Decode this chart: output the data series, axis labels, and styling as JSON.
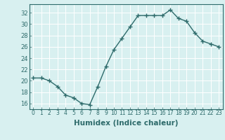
{
  "x": [
    0,
    1,
    2,
    3,
    4,
    5,
    6,
    7,
    8,
    9,
    10,
    11,
    12,
    13,
    14,
    15,
    16,
    17,
    18,
    19,
    20,
    21,
    22,
    23
  ],
  "y": [
    20.5,
    20.5,
    20.0,
    19.0,
    17.5,
    17.0,
    16.0,
    15.8,
    19.0,
    22.5,
    25.5,
    27.5,
    29.5,
    31.5,
    31.5,
    31.5,
    31.5,
    32.5,
    31.0,
    30.5,
    28.5,
    27.0,
    26.5,
    26.0
  ],
  "line_color": "#2e6b6b",
  "marker": "+",
  "marker_size": 4,
  "line_width": 1.0,
  "bg_color": "#d8f0f0",
  "grid_color": "#ffffff",
  "tick_color": "#2e6b6b",
  "xlabel": "Humidex (Indice chaleur)",
  "xlabel_fontsize": 7.5,
  "xlabel_color": "#2e6b6b",
  "ylabel_ticks": [
    16,
    18,
    20,
    22,
    24,
    26,
    28,
    30,
    32
  ],
  "ylim": [
    15.0,
    33.5
  ],
  "xlim": [
    -0.5,
    23.5
  ],
  "tick_fontsize": 5.5,
  "ytick_fontsize": 6.0
}
